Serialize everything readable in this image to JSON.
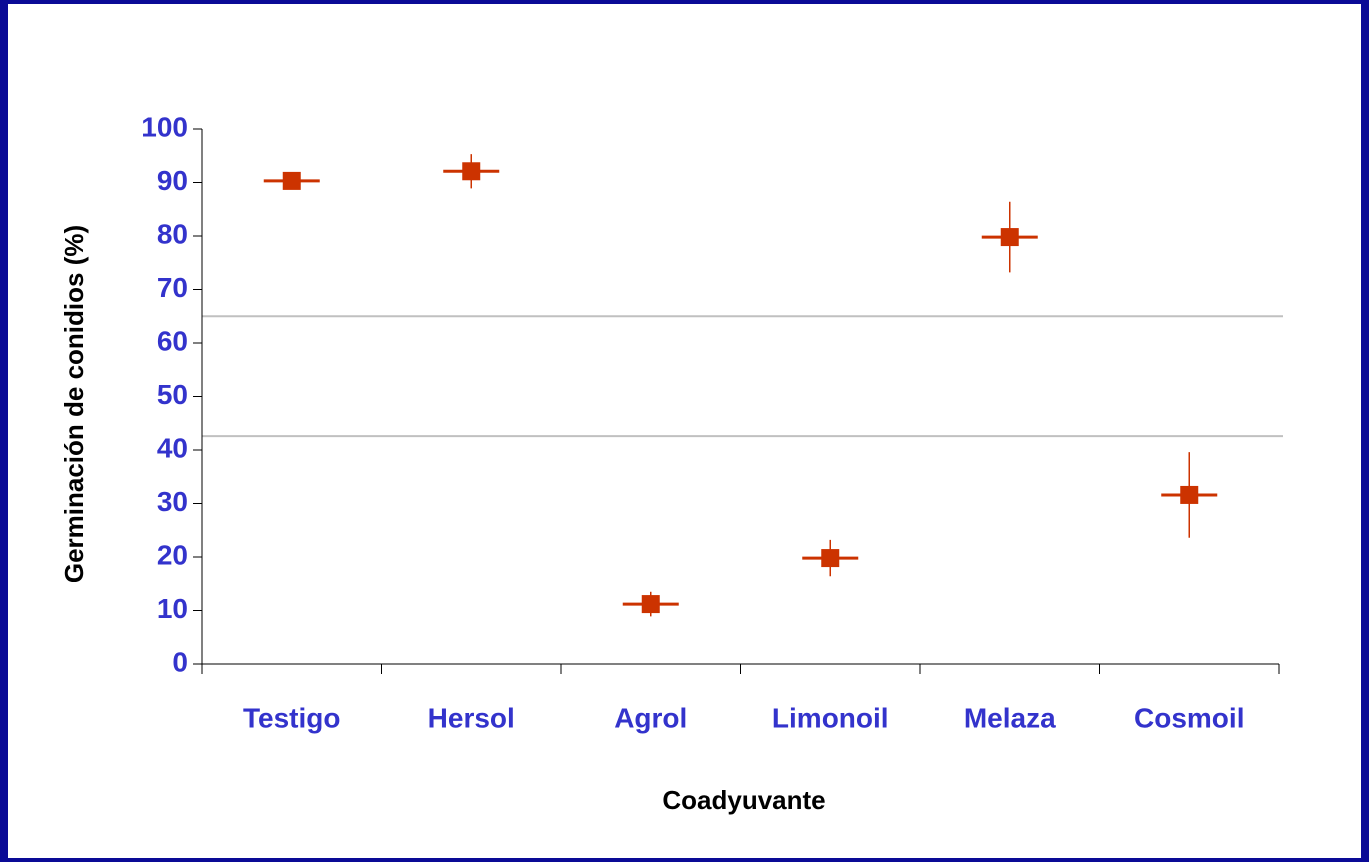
{
  "chart_data": {
    "type": "errorbar",
    "x_label": "Coadyuvante",
    "y_label": "Germinación de conidios (%)",
    "categories": [
      "Testigo",
      "Hersol",
      "Agrol",
      "Limonoil",
      "Melaza",
      "Cosmoil"
    ],
    "values": [
      90.3,
      92.1,
      11.2,
      19.8,
      79.8,
      31.6
    ],
    "errors": [
      1.5,
      3.2,
      2.3,
      3.4,
      6.6,
      8
    ],
    "color": "#cc3300",
    "reference_lines": [
      65,
      42.6
    ],
    "ylim": [
      0,
      100
    ],
    "yticks": [
      0,
      10,
      20,
      30,
      40,
      50,
      60,
      70,
      80,
      90,
      100
    ]
  }
}
